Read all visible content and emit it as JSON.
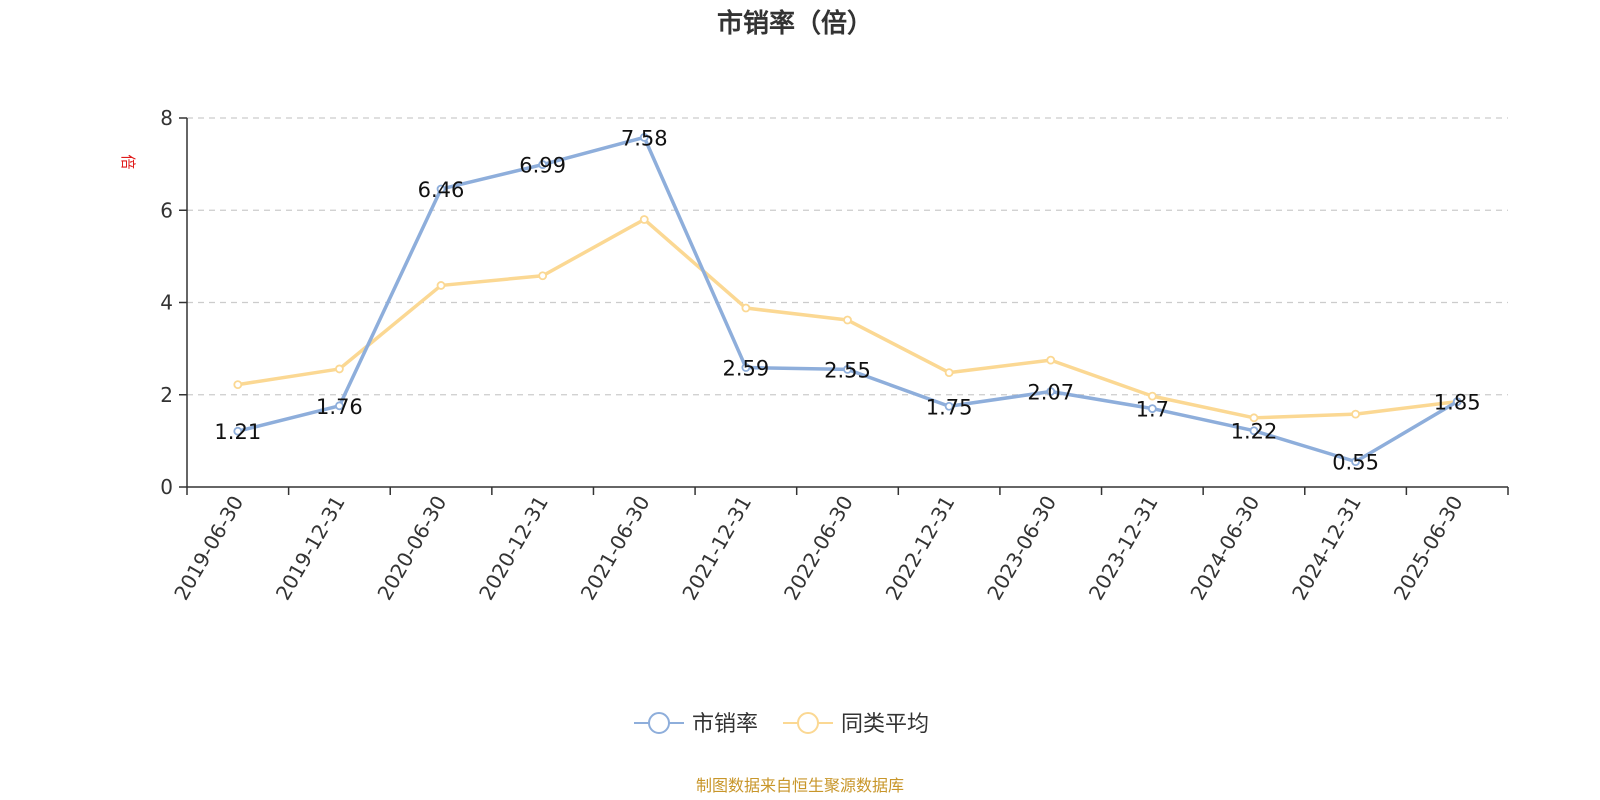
{
  "chart_data": {
    "type": "line",
    "title": "市销率（倍）",
    "ylabel": "倍",
    "ylim": [
      0,
      8
    ],
    "yticks": [
      0,
      2,
      4,
      6,
      8
    ],
    "grid": true,
    "legend_position": "bottom",
    "categories": [
      "2019-06-30",
      "2019-12-31",
      "2020-06-30",
      "2020-12-31",
      "2021-06-30",
      "2021-12-31",
      "2022-06-30",
      "2022-12-31",
      "2023-06-30",
      "2023-12-31",
      "2024-06-30",
      "2024-12-31",
      "2025-06-30"
    ],
    "series": [
      {
        "name": "市销率",
        "color": "#8eaedb",
        "values": [
          1.21,
          1.76,
          6.46,
          6.99,
          7.58,
          2.59,
          2.55,
          1.75,
          2.07,
          1.7,
          1.22,
          0.55,
          1.85
        ],
        "labels": [
          "1.21",
          "1.76",
          "6.46",
          "6.99",
          "7.58",
          "2.59",
          "2.55",
          "1.75",
          "2.07",
          "1.7",
          "1.22",
          "0.55",
          "1.85"
        ]
      },
      {
        "name": "同类平均",
        "color": "#fbd893",
        "values": [
          2.22,
          2.56,
          4.37,
          4.58,
          5.8,
          3.88,
          3.62,
          2.48,
          2.75,
          1.97,
          1.5,
          1.58,
          1.85
        ]
      }
    ],
    "source": "制图数据来自恒生聚源数据库"
  }
}
